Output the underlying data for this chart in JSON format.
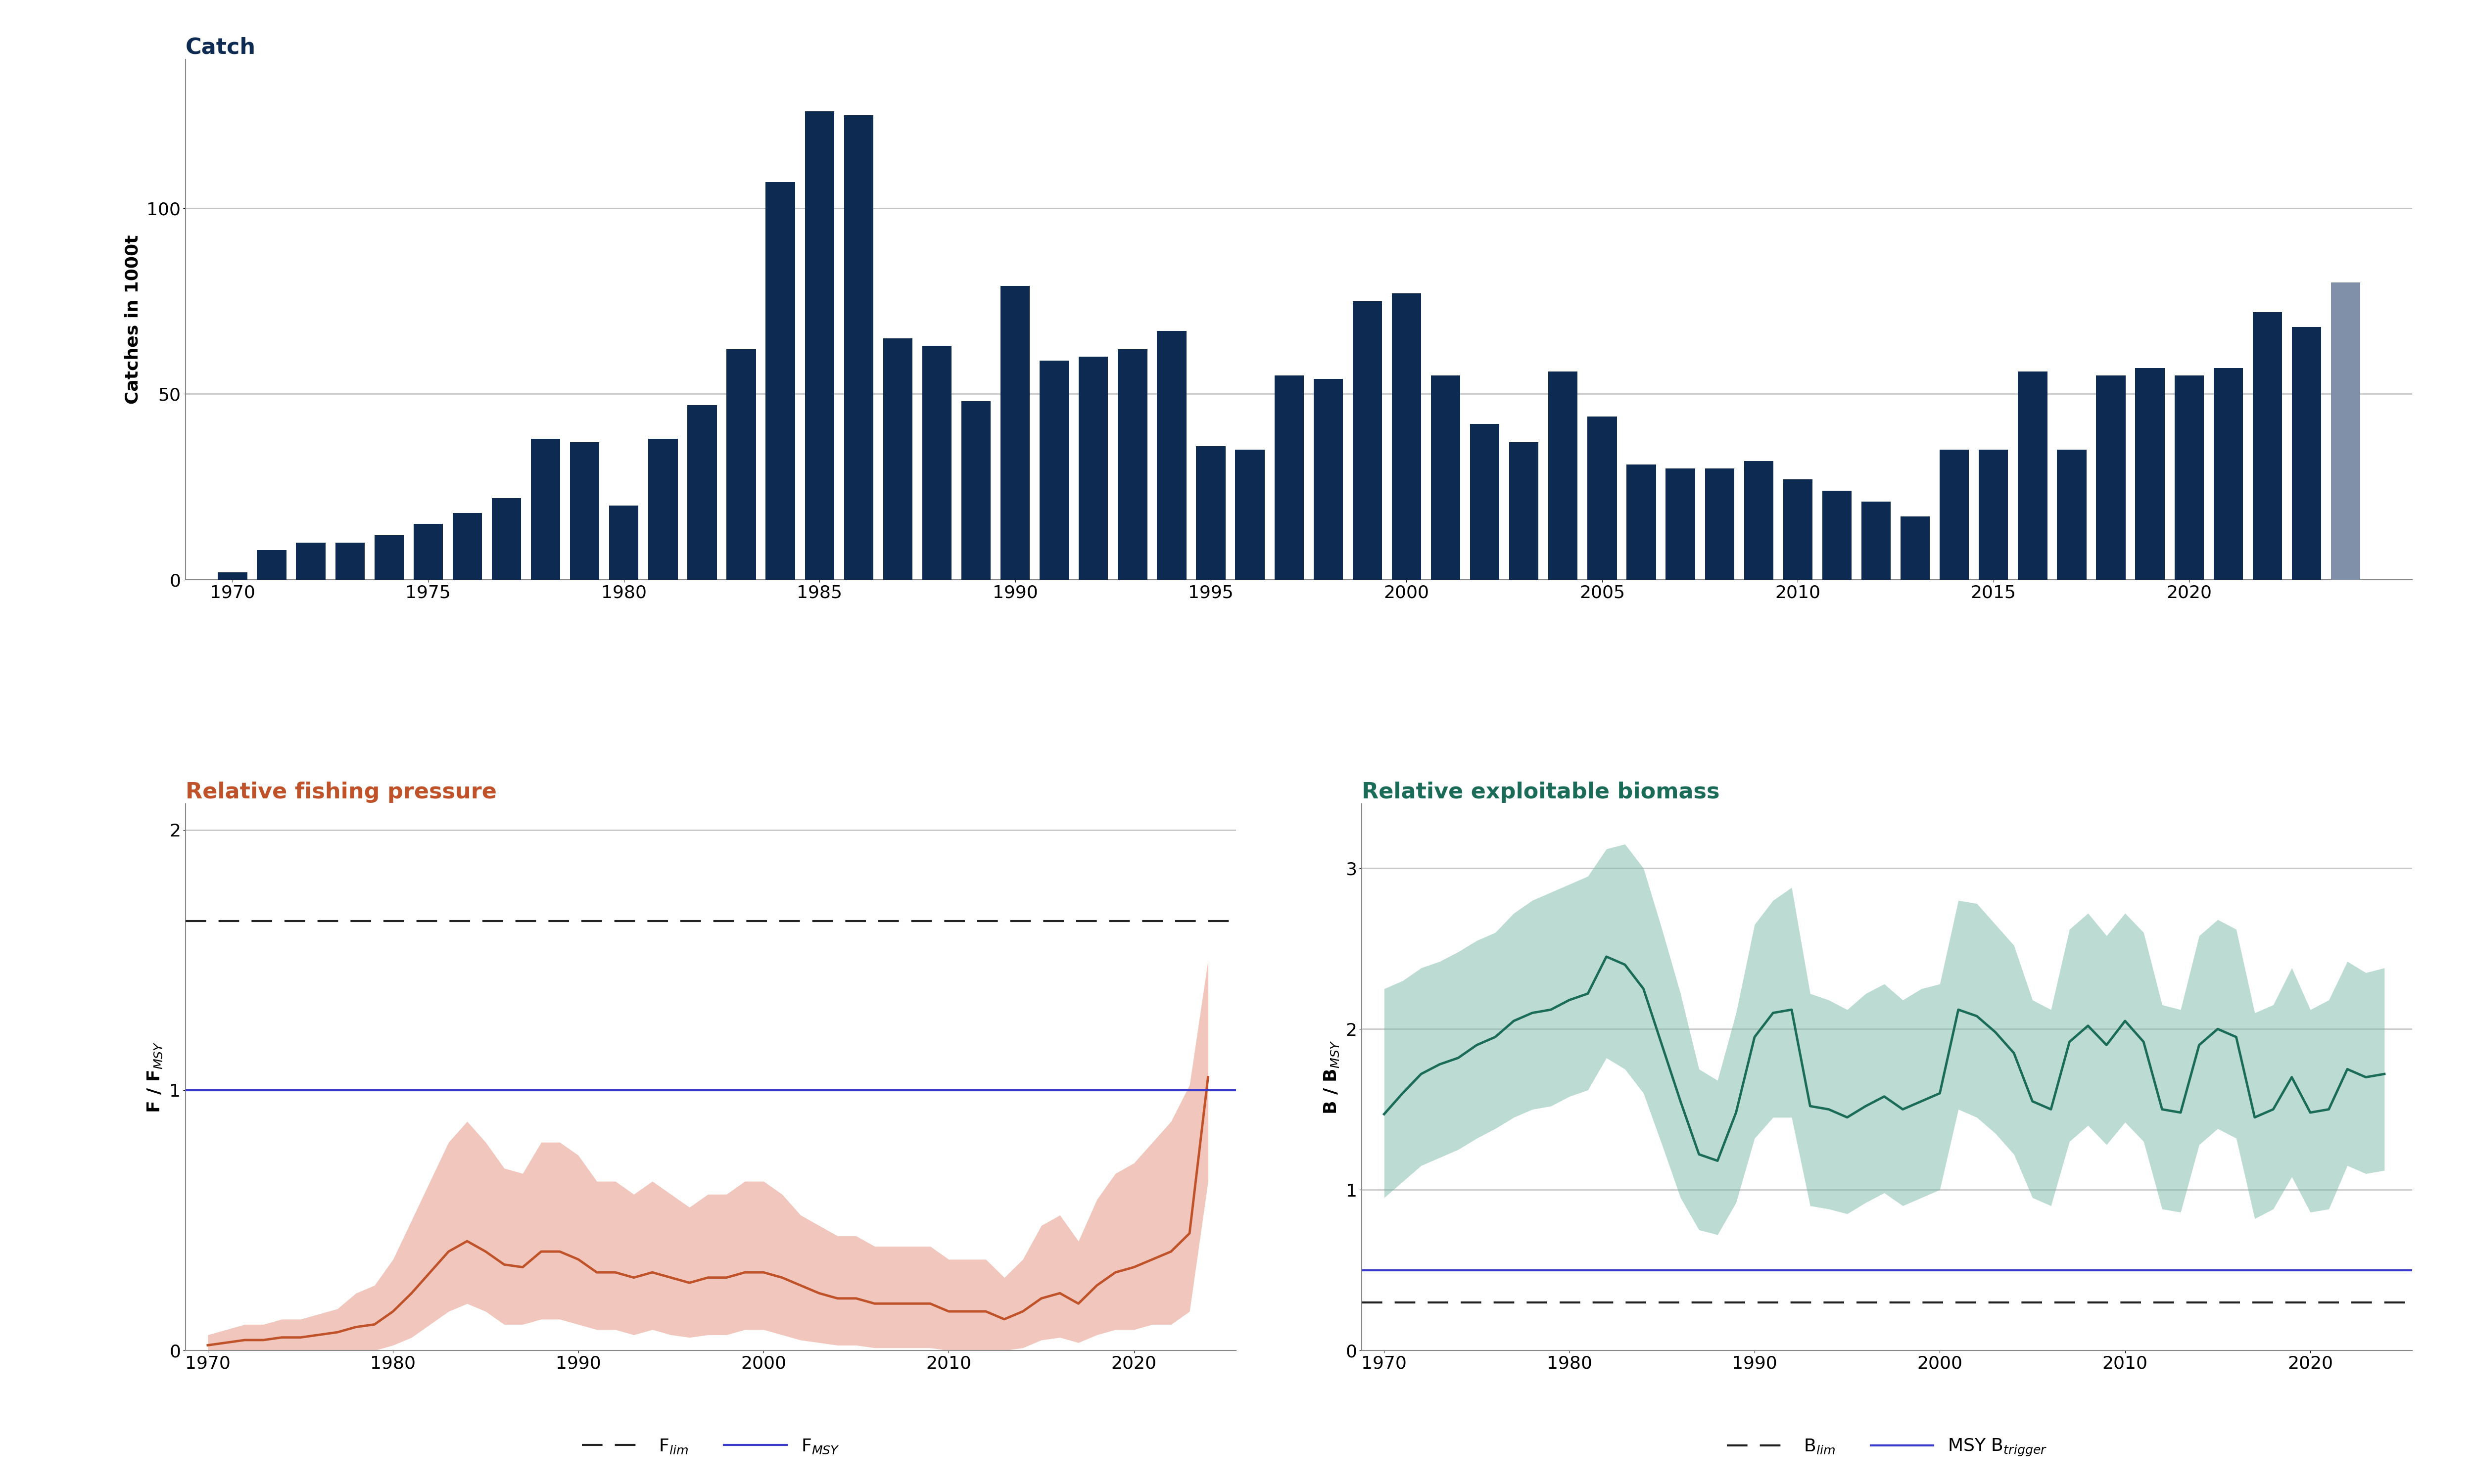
{
  "catch_years": [
    1970,
    1971,
    1972,
    1973,
    1974,
    1975,
    1976,
    1977,
    1978,
    1979,
    1980,
    1981,
    1982,
    1983,
    1984,
    1985,
    1986,
    1987,
    1988,
    1989,
    1990,
    1991,
    1992,
    1993,
    1994,
    1995,
    1996,
    1997,
    1998,
    1999,
    2000,
    2001,
    2002,
    2003,
    2004,
    2005,
    2006,
    2007,
    2008,
    2009,
    2010,
    2011,
    2012,
    2013,
    2014,
    2015,
    2016,
    2017,
    2018,
    2019,
    2020,
    2021,
    2022,
    2023,
    2024
  ],
  "catch_values": [
    2,
    8,
    10,
    10,
    12,
    15,
    18,
    22,
    38,
    37,
    20,
    38,
    47,
    62,
    107,
    126,
    125,
    65,
    63,
    48,
    79,
    59,
    60,
    62,
    67,
    36,
    35,
    55,
    54,
    75,
    77,
    55,
    42,
    37,
    56,
    44,
    31,
    30,
    30,
    32,
    27,
    24,
    21,
    17,
    35,
    35,
    56,
    35,
    55,
    57,
    55,
    57,
    72,
    68,
    80
  ],
  "catch_preliminary_index": 54,
  "catch_color": "#0d2a52",
  "catch_prelim_color": "#8090a8",
  "catch_ylabel": "Catches in 1000t",
  "catch_title": "Catch",
  "catch_title_color": "#0d2a52",
  "catch_ylim": [
    0,
    140
  ],
  "catch_yticks": [
    0,
    50,
    100
  ],
  "f_years": [
    1970,
    1971,
    1972,
    1973,
    1974,
    1975,
    1976,
    1977,
    1978,
    1979,
    1980,
    1981,
    1982,
    1983,
    1984,
    1985,
    1986,
    1987,
    1988,
    1989,
    1990,
    1991,
    1992,
    1993,
    1994,
    1995,
    1996,
    1997,
    1998,
    1999,
    2000,
    2001,
    2002,
    2003,
    2004,
    2005,
    2006,
    2007,
    2008,
    2009,
    2010,
    2011,
    2012,
    2013,
    2014,
    2015,
    2016,
    2017,
    2018,
    2019,
    2020,
    2021,
    2022,
    2023,
    2024
  ],
  "f_mean": [
    0.02,
    0.03,
    0.04,
    0.04,
    0.05,
    0.05,
    0.06,
    0.07,
    0.09,
    0.1,
    0.15,
    0.22,
    0.3,
    0.38,
    0.42,
    0.38,
    0.33,
    0.32,
    0.38,
    0.38,
    0.35,
    0.3,
    0.3,
    0.28,
    0.3,
    0.28,
    0.26,
    0.28,
    0.28,
    0.3,
    0.3,
    0.28,
    0.25,
    0.22,
    0.2,
    0.2,
    0.18,
    0.18,
    0.18,
    0.18,
    0.15,
    0.15,
    0.15,
    0.12,
    0.15,
    0.2,
    0.22,
    0.18,
    0.25,
    0.3,
    0.32,
    0.35,
    0.38,
    0.45,
    1.05
  ],
  "f_lower": [
    0.0,
    0.0,
    0.0,
    0.0,
    0.0,
    0.0,
    0.0,
    0.0,
    0.0,
    0.0,
    0.02,
    0.05,
    0.1,
    0.15,
    0.18,
    0.15,
    0.1,
    0.1,
    0.12,
    0.12,
    0.1,
    0.08,
    0.08,
    0.06,
    0.08,
    0.06,
    0.05,
    0.06,
    0.06,
    0.08,
    0.08,
    0.06,
    0.04,
    0.03,
    0.02,
    0.02,
    0.01,
    0.01,
    0.01,
    0.01,
    0.0,
    0.0,
    0.0,
    0.0,
    0.01,
    0.04,
    0.05,
    0.03,
    0.06,
    0.08,
    0.08,
    0.1,
    0.1,
    0.15,
    0.65
  ],
  "f_upper": [
    0.06,
    0.08,
    0.1,
    0.1,
    0.12,
    0.12,
    0.14,
    0.16,
    0.22,
    0.25,
    0.35,
    0.5,
    0.65,
    0.8,
    0.88,
    0.8,
    0.7,
    0.68,
    0.8,
    0.8,
    0.75,
    0.65,
    0.65,
    0.6,
    0.65,
    0.6,
    0.55,
    0.6,
    0.6,
    0.65,
    0.65,
    0.6,
    0.52,
    0.48,
    0.44,
    0.44,
    0.4,
    0.4,
    0.4,
    0.4,
    0.35,
    0.35,
    0.35,
    0.28,
    0.35,
    0.48,
    0.52,
    0.42,
    0.58,
    0.68,
    0.72,
    0.8,
    0.88,
    1.02,
    1.5
  ],
  "f_mean_color": "#c0522a",
  "f_fill_color": "#e8a090",
  "f_fill_alpha": 0.6,
  "f_fmsy_line": 1.0,
  "f_flim_line": 1.65,
  "f_fmsy_color": "#3939cc",
  "f_flim_color": "#222222",
  "f_title": "Relative fishing pressure",
  "f_title_color": "#c0522a",
  "f_ylabel": "F / F$_{MSY}$",
  "f_ylim": [
    0,
    2.1
  ],
  "f_yticks": [
    0,
    1,
    2
  ],
  "b_years": [
    1970,
    1971,
    1972,
    1973,
    1974,
    1975,
    1976,
    1977,
    1978,
    1979,
    1980,
    1981,
    1982,
    1983,
    1984,
    1985,
    1986,
    1987,
    1988,
    1989,
    1990,
    1991,
    1992,
    1993,
    1994,
    1995,
    1996,
    1997,
    1998,
    1999,
    2000,
    2001,
    2002,
    2003,
    2004,
    2005,
    2006,
    2007,
    2008,
    2009,
    2010,
    2011,
    2012,
    2013,
    2014,
    2015,
    2016,
    2017,
    2018,
    2019,
    2020,
    2021,
    2022,
    2023,
    2024
  ],
  "b_mean": [
    1.47,
    1.6,
    1.72,
    1.78,
    1.82,
    1.9,
    1.95,
    2.05,
    2.1,
    2.12,
    2.18,
    2.22,
    2.45,
    2.4,
    2.25,
    1.9,
    1.55,
    1.22,
    1.18,
    1.48,
    1.95,
    2.1,
    2.12,
    1.52,
    1.5,
    1.45,
    1.52,
    1.58,
    1.5,
    1.55,
    1.6,
    2.12,
    2.08,
    1.98,
    1.85,
    1.55,
    1.5,
    1.92,
    2.02,
    1.9,
    2.05,
    1.92,
    1.5,
    1.48,
    1.9,
    2.0,
    1.95,
    1.45,
    1.5,
    1.7,
    1.48,
    1.5,
    1.75,
    1.7,
    1.72
  ],
  "b_lower": [
    0.95,
    1.05,
    1.15,
    1.2,
    1.25,
    1.32,
    1.38,
    1.45,
    1.5,
    1.52,
    1.58,
    1.62,
    1.82,
    1.75,
    1.6,
    1.28,
    0.95,
    0.75,
    0.72,
    0.92,
    1.32,
    1.45,
    1.45,
    0.9,
    0.88,
    0.85,
    0.92,
    0.98,
    0.9,
    0.95,
    1.0,
    1.5,
    1.45,
    1.35,
    1.22,
    0.95,
    0.9,
    1.3,
    1.4,
    1.28,
    1.42,
    1.3,
    0.88,
    0.86,
    1.28,
    1.38,
    1.32,
    0.82,
    0.88,
    1.08,
    0.86,
    0.88,
    1.15,
    1.1,
    1.12
  ],
  "b_upper": [
    2.25,
    2.3,
    2.38,
    2.42,
    2.48,
    2.55,
    2.6,
    2.72,
    2.8,
    2.85,
    2.9,
    2.95,
    3.12,
    3.15,
    3.0,
    2.62,
    2.22,
    1.75,
    1.68,
    2.1,
    2.65,
    2.8,
    2.88,
    2.22,
    2.18,
    2.12,
    2.22,
    2.28,
    2.18,
    2.25,
    2.28,
    2.8,
    2.78,
    2.65,
    2.52,
    2.18,
    2.12,
    2.62,
    2.72,
    2.58,
    2.72,
    2.6,
    2.15,
    2.12,
    2.58,
    2.68,
    2.62,
    2.1,
    2.15,
    2.38,
    2.12,
    2.18,
    2.42,
    2.35,
    2.38
  ],
  "b_mean_color": "#1a6b58",
  "b_fill_color": "#7abba8",
  "b_fill_alpha": 0.5,
  "b_bmsy_line": 0.5,
  "b_blim_line": 0.3,
  "b_bmsy_color": "#3939cc",
  "b_blim_color": "#222222",
  "b_title": "Relative exploitable biomass",
  "b_title_color": "#1a6b58",
  "b_ylabel": "B / B$_{MSY}$",
  "b_ylim": [
    0,
    3.4
  ],
  "b_yticks": [
    0,
    1,
    2,
    3
  ],
  "legend_fmsy_label": "F$_{MSY}$",
  "legend_flim_label": "F$_{lim}$",
  "legend_bmsy_label": "MSY B$_{trigger}$",
  "legend_blim_label": "B$_{lim}$",
  "background_color": "#ffffff",
  "grid_color": "#c8c8c8",
  "spine_color": "#888888",
  "tick_label_fontsize": 26,
  "axis_label_fontsize": 26,
  "title_fontsize": 32
}
